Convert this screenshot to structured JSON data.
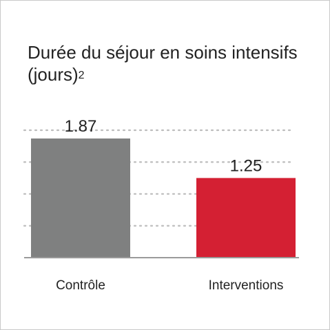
{
  "chart_data": {
    "type": "bar",
    "title": "Durée du séjour en soins intensifs (jours)",
    "title_superscript": "2",
    "categories": [
      "Contrôle",
      "Interventions"
    ],
    "values": [
      1.87,
      1.25
    ],
    "value_labels": [
      "1.87",
      "1.25"
    ],
    "colors": [
      "#7f8080",
      "#d42033"
    ],
    "ylim": [
      0,
      2.0
    ],
    "grid": true,
    "grid_style": "dotted",
    "xlabel": "",
    "ylabel": ""
  }
}
